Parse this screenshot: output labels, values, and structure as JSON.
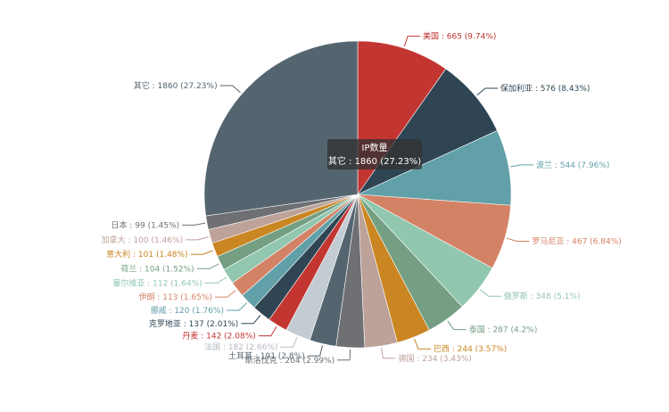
{
  "chart_data": {
    "type": "pie",
    "series_name": "IP数量",
    "slices": [
      {
        "name": "美国",
        "value": 665,
        "percent": "9.74%",
        "color": "#c23531"
      },
      {
        "name": "保加利亚",
        "value": 576,
        "percent": "8.43%",
        "color": "#2f4554"
      },
      {
        "name": "波兰",
        "value": 544,
        "percent": "7.96%",
        "color": "#61a0a8"
      },
      {
        "name": "罗马尼亚",
        "value": 467,
        "percent": "6.84%",
        "color": "#d48265"
      },
      {
        "name": "俄罗斯",
        "value": 348,
        "percent": "5.1%",
        "color": "#91c7ae"
      },
      {
        "name": "泰国",
        "value": 287,
        "percent": "4.2%",
        "color": "#749f83"
      },
      {
        "name": "巴西",
        "value": 244,
        "percent": "3.57%",
        "color": "#ca8622"
      },
      {
        "name": "德国",
        "value": 234,
        "percent": "3.43%",
        "color": "#bda29a"
      },
      {
        "name": "斯洛伐克",
        "value": 204,
        "percent": "2.99%",
        "color": "#6e7074"
      },
      {
        "name": "土耳其",
        "value": 191,
        "percent": "2.8%",
        "color": "#546570"
      },
      {
        "name": "法国",
        "value": 182,
        "percent": "2.66%",
        "color": "#c4ccd3"
      },
      {
        "name": "丹麦",
        "value": 142,
        "percent": "2.08%",
        "color": "#c23531"
      },
      {
        "name": "克罗地亚",
        "value": 137,
        "percent": "2.01%",
        "color": "#2f4554"
      },
      {
        "name": "挪威",
        "value": 120,
        "percent": "1.76%",
        "color": "#61a0a8"
      },
      {
        "name": "伊朗",
        "value": 113,
        "percent": "1.65%",
        "color": "#d48265"
      },
      {
        "name": "塞尔维亚",
        "value": 112,
        "percent": "1.64%",
        "color": "#91c7ae"
      },
      {
        "name": "荷兰",
        "value": 104,
        "percent": "1.52%",
        "color": "#749f83"
      },
      {
        "name": "意大利",
        "value": 101,
        "percent": "1.48%",
        "color": "#ca8622"
      },
      {
        "name": "加拿大",
        "value": 100,
        "percent": "1.46%",
        "color": "#bda29a"
      },
      {
        "name": "日本",
        "value": 99,
        "percent": "1.45%",
        "color": "#6e7074"
      },
      {
        "name": "其它",
        "value": 1860,
        "percent": "27.23%",
        "color": "#546570"
      }
    ],
    "tooltip": {
      "title": "IP数量",
      "text": "其它 : 1860 (27.23%)"
    }
  }
}
